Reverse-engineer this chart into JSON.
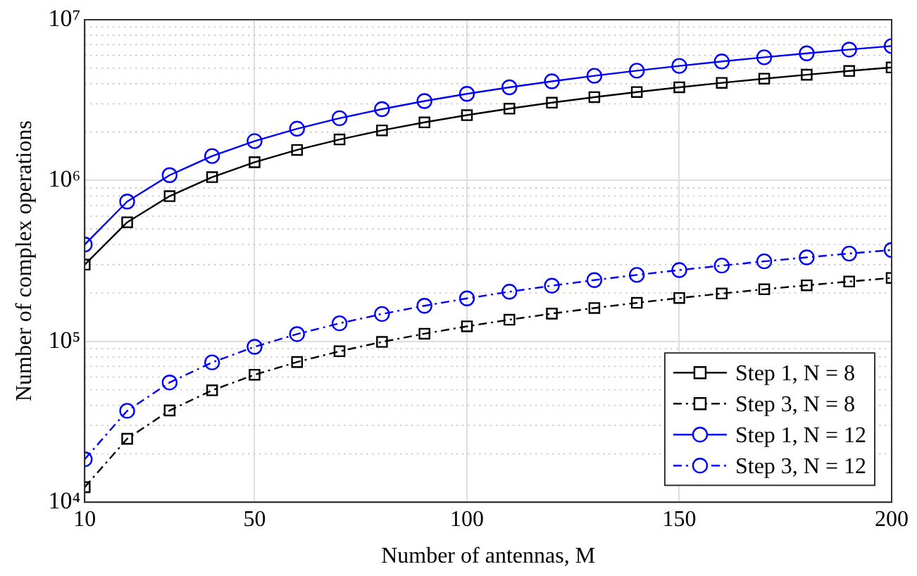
{
  "chart_data": {
    "type": "line",
    "xlabel": "Number of antennas, M",
    "ylabel": "Number of complex operations",
    "x": [
      10,
      20,
      30,
      40,
      50,
      60,
      70,
      80,
      90,
      100,
      110,
      120,
      130,
      140,
      150,
      160,
      170,
      180,
      190,
      200
    ],
    "series": [
      {
        "name": "Step 1, N = 8",
        "color": "#000000",
        "marker": "square",
        "line_style": "solid",
        "values": [
          300000,
          550000,
          800000,
          1050000,
          1300000,
          1550000,
          1800000,
          2050000,
          2300000,
          2550000,
          2800000,
          3050000,
          3300000,
          3550000,
          3800000,
          4050000,
          4300000,
          4550000,
          4800000,
          5050000
        ]
      },
      {
        "name": "Step 3, N = 8",
        "color": "#000000",
        "marker": "square",
        "line_style": "dashed",
        "values": [
          12400,
          24800,
          37200,
          49600,
          62000,
          74400,
          86800,
          99200,
          111600,
          124000,
          136400,
          148800,
          161200,
          173600,
          186000,
          198400,
          210800,
          223200,
          235600,
          248000
        ]
      },
      {
        "name": "Step 1, N = 12",
        "color": "#0000ff",
        "marker": "circle",
        "line_style": "solid",
        "values": [
          400000,
          740000,
          1080000,
          1420000,
          1760000,
          2100000,
          2440000,
          2780000,
          3120000,
          3460000,
          3800000,
          4140000,
          4480000,
          4820000,
          5160000,
          5500000,
          5840000,
          6180000,
          6520000,
          6860000
        ]
      },
      {
        "name": "Step 3, N = 12",
        "color": "#0000ff",
        "marker": "circle",
        "line_style": "dashed",
        "values": [
          18500,
          37000,
          55500,
          74000,
          92500,
          111000,
          129500,
          148000,
          166500,
          185000,
          203500,
          222000,
          240500,
          259000,
          277500,
          296000,
          314500,
          333000,
          351500,
          370000
        ]
      }
    ],
    "log": "y",
    "xlim": [
      10,
      200
    ],
    "xticks": [
      10,
      50,
      100,
      150,
      200
    ],
    "ylim": [
      10000,
      10000000
    ],
    "yticks": [
      {
        "value": 10000,
        "label": "10⁴"
      },
      {
        "value": 100000,
        "label": "10⁵"
      },
      {
        "value": 1000000,
        "label": "10⁶"
      },
      {
        "value": 10000000,
        "label": "10⁷"
      }
    ],
    "grid": true,
    "legend": "bottom right"
  }
}
